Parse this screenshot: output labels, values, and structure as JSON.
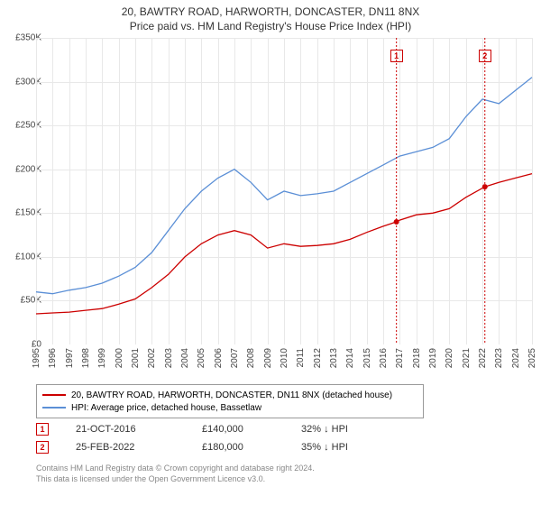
{
  "title_main": "20, BAWTRY ROAD, HARWORTH, DONCASTER, DN11 8NX",
  "title_sub": "Price paid vs. HM Land Registry's House Price Index (HPI)",
  "chart": {
    "type": "line",
    "background_color": "#ffffff",
    "grid_color": "#e8e8e8",
    "axis_color": "#888888",
    "title_fontsize": 12,
    "label_fontsize": 10,
    "x_range": [
      1995,
      2025
    ],
    "y_range": [
      0,
      350000
    ],
    "y_ticks": [
      0,
      50000,
      100000,
      150000,
      200000,
      250000,
      300000,
      350000
    ],
    "y_tick_labels": [
      "£0",
      "£50K",
      "£100K",
      "£150K",
      "£200K",
      "£250K",
      "£300K",
      "£350K"
    ],
    "x_ticks": [
      1995,
      1996,
      1997,
      1998,
      1999,
      2000,
      2001,
      2002,
      2003,
      2004,
      2005,
      2006,
      2007,
      2008,
      2009,
      2010,
      2011,
      2012,
      2013,
      2014,
      2015,
      2016,
      2017,
      2018,
      2019,
      2020,
      2021,
      2022,
      2023,
      2024,
      2025
    ],
    "series": [
      {
        "name": "property",
        "label": "20, BAWTRY ROAD, HARWORTH, DONCASTER, DN11 8NX (detached house)",
        "color": "#cc0000",
        "line_width": 1.3,
        "data_x": [
          1995,
          1996,
          1997,
          1998,
          1999,
          2000,
          2001,
          2002,
          2003,
          2004,
          2005,
          2006,
          2007,
          2008,
          2009,
          2010,
          2011,
          2012,
          2013,
          2014,
          2015,
          2016,
          2016.8,
          2017,
          2018,
          2019,
          2020,
          2021,
          2022.15,
          2023,
          2024,
          2025
        ],
        "data_y": [
          35000,
          36000,
          37000,
          39000,
          41000,
          46000,
          52000,
          65000,
          80000,
          100000,
          115000,
          125000,
          130000,
          125000,
          110000,
          115000,
          112000,
          113000,
          115000,
          120000,
          128000,
          135000,
          140000,
          142000,
          148000,
          150000,
          155000,
          168000,
          180000,
          185000,
          190000,
          195000
        ]
      },
      {
        "name": "hpi",
        "label": "HPI: Average price, detached house, Bassetlaw",
        "color": "#5b8fd6",
        "line_width": 1.3,
        "data_x": [
          1995,
          1996,
          1997,
          1998,
          1999,
          2000,
          2001,
          2002,
          2003,
          2004,
          2005,
          2006,
          2007,
          2008,
          2009,
          2010,
          2011,
          2012,
          2013,
          2014,
          2015,
          2016,
          2017,
          2018,
          2019,
          2020,
          2021,
          2022,
          2023,
          2024,
          2025
        ],
        "data_y": [
          60000,
          58000,
          62000,
          65000,
          70000,
          78000,
          88000,
          105000,
          130000,
          155000,
          175000,
          190000,
          200000,
          185000,
          165000,
          175000,
          170000,
          172000,
          175000,
          185000,
          195000,
          205000,
          215000,
          220000,
          225000,
          235000,
          260000,
          280000,
          275000,
          290000,
          305000
        ]
      }
    ],
    "markers": [
      {
        "n": "1",
        "x": 2016.8,
        "color": "#cc0000",
        "box_top": 55
      },
      {
        "n": "2",
        "x": 2022.15,
        "color": "#cc0000",
        "box_top": 55
      }
    ],
    "sale_points": [
      {
        "x": 2016.8,
        "y": 140000,
        "color": "#cc0000"
      },
      {
        "x": 2022.15,
        "y": 180000,
        "color": "#cc0000"
      }
    ]
  },
  "legend": {
    "items": [
      {
        "color": "#cc0000",
        "label": "20, BAWTRY ROAD, HARWORTH, DONCASTER, DN11 8NX (detached house)"
      },
      {
        "color": "#5b8fd6",
        "label": "HPI: Average price, detached house, Bassetlaw"
      }
    ]
  },
  "sales": [
    {
      "n": "1",
      "color": "#cc0000",
      "date": "21-OCT-2016",
      "price": "£140,000",
      "pct": "32% ↓ HPI"
    },
    {
      "n": "2",
      "color": "#cc0000",
      "date": "25-FEB-2022",
      "price": "£180,000",
      "pct": "35% ↓ HPI"
    }
  ],
  "footnote_l1": "Contains HM Land Registry data © Crown copyright and database right 2024.",
  "footnote_l2": "This data is licensed under the Open Government Licence v3.0."
}
